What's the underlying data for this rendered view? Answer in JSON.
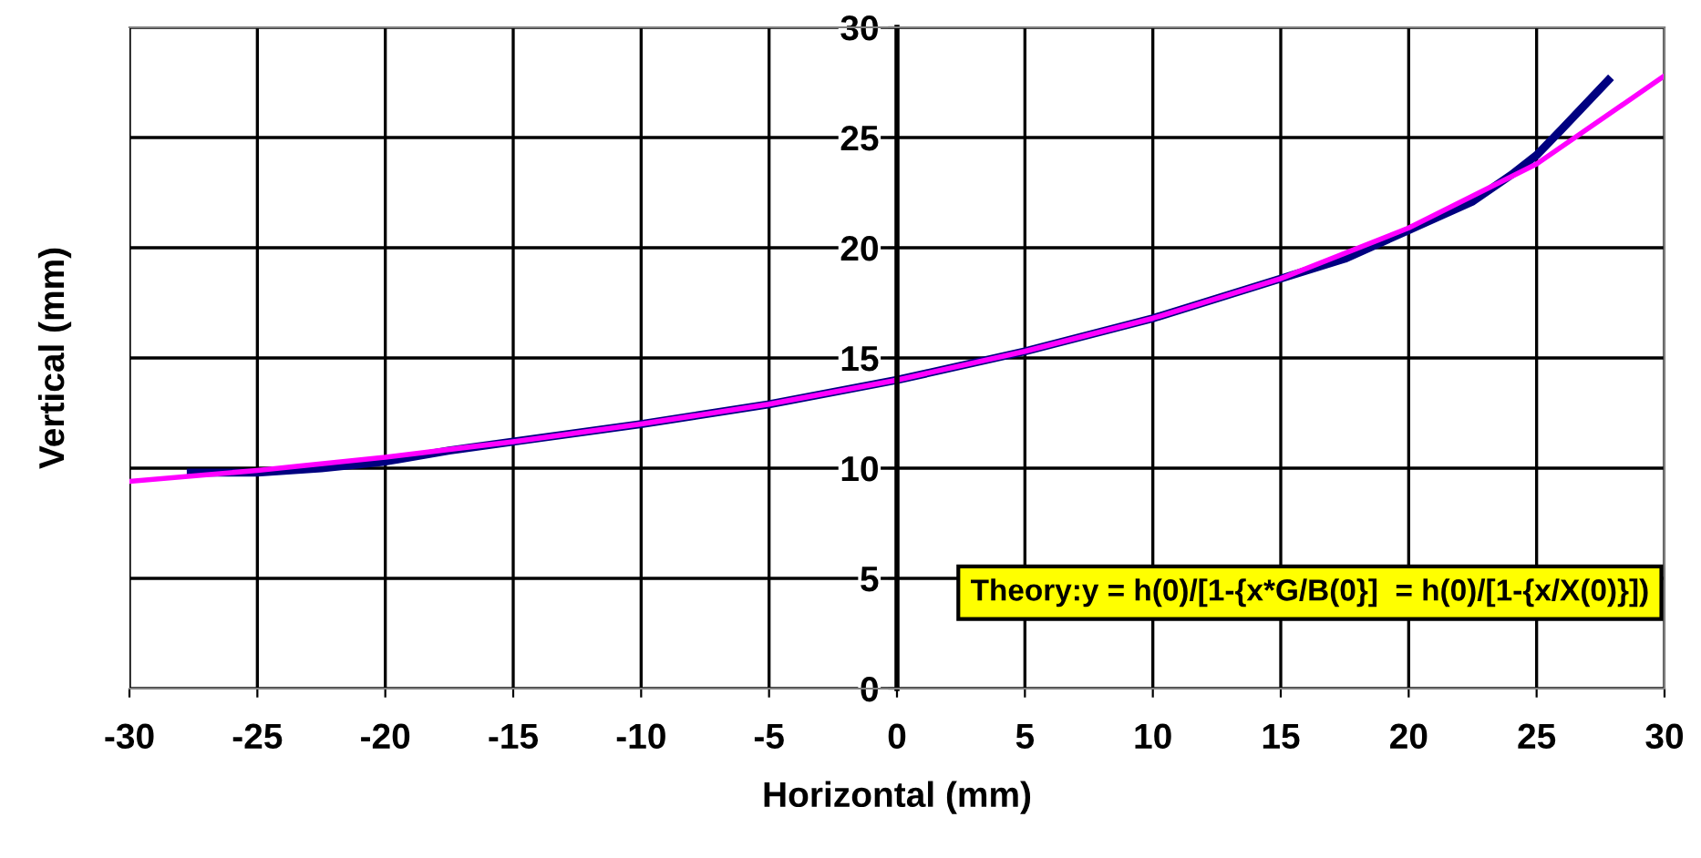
{
  "chart_data": {
    "type": "line",
    "xlabel": "Horizontal (mm)",
    "ylabel": "Vertical (mm)",
    "series": [
      {
        "color": "#000080",
        "x": [
          -27.6,
          -25,
          -22.5,
          -20,
          -17.5,
          -15,
          -10,
          -5,
          0,
          5,
          10,
          15,
          17.5,
          20,
          22.5,
          24,
          25,
          26,
          27.8
        ],
        "values": [
          9.8,
          9.8,
          10.0,
          10.3,
          10.8,
          11.2,
          12.0,
          12.9,
          14.0,
          15.3,
          16.8,
          18.6,
          19.5,
          20.8,
          22.1,
          23.3,
          24.2,
          25.4,
          27.6
        ]
      },
      {
        "color": "#ff00ff",
        "x": [
          -30,
          -25,
          -20,
          -15,
          -10,
          -5,
          0,
          5,
          10,
          15,
          20,
          25,
          30
        ],
        "values": [
          9.4,
          9.9,
          10.5,
          11.2,
          12.0,
          12.9,
          14.0,
          15.3,
          16.8,
          18.6,
          20.9,
          23.8,
          27.8
        ]
      }
    ],
    "xlim": [
      -30,
      30
    ],
    "xticks": [
      -30,
      -25,
      -20,
      -15,
      -10,
      -5,
      0,
      5,
      10,
      15,
      20,
      25,
      30
    ],
    "ylim": [
      0,
      30
    ],
    "yticks": [
      0,
      5,
      10,
      15,
      20,
      25,
      30
    ],
    "grid": true,
    "marker": "none",
    "line_style": "solid",
    "annotations": [
      "Theory:y = h(0)/[1-{x*G/B(0}]  = h(0)/[1-{x/X(0)}])"
    ]
  }
}
